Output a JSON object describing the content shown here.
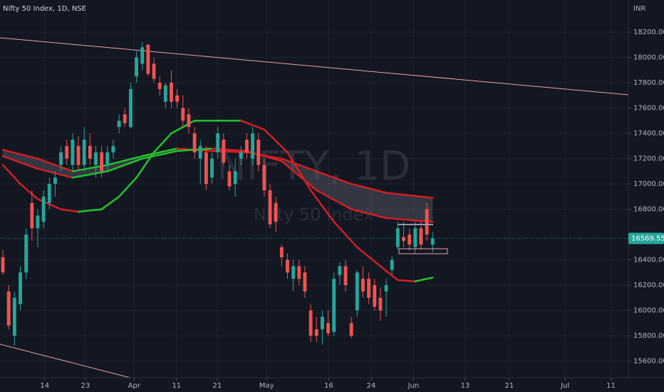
{
  "header": {
    "symbol": "Nifty 50 Index, 1D, NSE",
    "currency": "INR"
  },
  "watermark": {
    "line1": "NIFTY, 1D",
    "line2": "Nifty 50 Index"
  },
  "chart_data": {
    "type": "candlestick",
    "up_color": "#26a69a",
    "down_color": "#ef5350",
    "x": [
      0,
      1,
      2,
      3,
      4,
      5,
      6,
      7,
      8,
      9,
      10,
      11,
      12,
      13,
      14,
      15,
      16,
      17,
      18,
      19,
      20,
      21,
      22,
      23,
      24,
      25,
      26,
      27,
      28,
      29,
      30,
      31,
      32,
      33,
      34,
      35,
      36,
      37,
      38,
      39,
      40,
      41,
      42,
      43,
      44,
      45,
      46,
      47,
      48,
      49,
      50,
      51,
      52,
      53,
      54,
      55,
      56,
      57,
      58,
      59,
      60,
      61,
      62,
      63,
      64,
      65,
      66,
      67,
      68,
      69,
      70,
      71,
      72,
      73,
      74
    ],
    "candles": [
      [
        16420,
        16480,
        16280,
        16300
      ],
      [
        16150,
        16200,
        15850,
        15880
      ],
      [
        15800,
        16150,
        15720,
        16100
      ],
      [
        16050,
        16350,
        16000,
        16300
      ],
      [
        16300,
        16650,
        16250,
        16600
      ],
      [
        16850,
        16950,
        16550,
        16650
      ],
      [
        16650,
        16800,
        16500,
        16750
      ],
      [
        16700,
        16950,
        16650,
        16900
      ],
      [
        16850,
        17050,
        16800,
        17000
      ],
      [
        17000,
        17100,
        16900,
        17050
      ],
      [
        17150,
        17300,
        17100,
        17250
      ],
      [
        17300,
        17350,
        17150,
        17200
      ],
      [
        17150,
        17400,
        17100,
        17350
      ],
      [
        17300,
        17380,
        17100,
        17150
      ],
      [
        17150,
        17450,
        17100,
        17350
      ],
      [
        17300,
        17400,
        17150,
        17200
      ],
      [
        17150,
        17300,
        17050,
        17250
      ],
      [
        17250,
        17300,
        17050,
        17100
      ],
      [
        17150,
        17300,
        17100,
        17250
      ],
      [
        17250,
        17350,
        17200,
        17300
      ],
      [
        17450,
        17550,
        17400,
        17500
      ],
      [
        17550,
        17600,
        17450,
        17480
      ],
      [
        17450,
        17800,
        17440,
        17750
      ],
      [
        17850,
        18050,
        17800,
        18000
      ],
      [
        17950,
        18120,
        17900,
        18080
      ],
      [
        18100,
        18110,
        17850,
        17870
      ],
      [
        17950,
        18000,
        17800,
        17830
      ],
      [
        17800,
        17850,
        17700,
        17750
      ],
      [
        17650,
        17800,
        17600,
        17780
      ],
      [
        17800,
        17900,
        17600,
        17650
      ],
      [
        17700,
        17750,
        17600,
        17650
      ],
      [
        17600,
        17700,
        17450,
        17500
      ],
      [
        17550,
        17600,
        17400,
        17450
      ],
      [
        17400,
        17450,
        17200,
        17250
      ],
      [
        17200,
        17350,
        17000,
        17300
      ],
      [
        17250,
        17300,
        16950,
        17000
      ],
      [
        17050,
        17250,
        17000,
        17200
      ],
      [
        17250,
        17450,
        17200,
        17400
      ],
      [
        17350,
        17400,
        17150,
        17170
      ],
      [
        17100,
        17150,
        16950,
        16980
      ],
      [
        17000,
        17200,
        16900,
        17100
      ],
      [
        17200,
        17300,
        17150,
        17250
      ],
      [
        17350,
        17400,
        17200,
        17250
      ],
      [
        17200,
        17450,
        17150,
        17400
      ],
      [
        17350,
        17400,
        17100,
        17150
      ],
      [
        17150,
        17200,
        16900,
        16950
      ],
      [
        16950,
        17000,
        16650,
        16680
      ],
      [
        16850,
        16900,
        16620,
        16700
      ],
      [
        16500,
        16520,
        16350,
        16420
      ],
      [
        16400,
        16450,
        16250,
        16300
      ],
      [
        16250,
        16400,
        16150,
        16350
      ],
      [
        16350,
        16400,
        16200,
        16250
      ],
      [
        16300,
        16350,
        16100,
        16150
      ],
      [
        16000,
        16050,
        15750,
        15800
      ],
      [
        15850,
        15950,
        15750,
        15800
      ],
      [
        15850,
        16000,
        15730,
        15950
      ],
      [
        15900,
        16000,
        15800,
        15820
      ],
      [
        15830,
        16300,
        15800,
        16250
      ],
      [
        16280,
        16380,
        16200,
        16350
      ],
      [
        16350,
        16400,
        16150,
        16200
      ],
      [
        15900,
        15950,
        15780,
        15800
      ],
      [
        16000,
        16320,
        15950,
        16300
      ],
      [
        16250,
        16350,
        16100,
        16150
      ],
      [
        16250,
        16300,
        16050,
        16100
      ],
      [
        16200,
        16250,
        16000,
        16030
      ],
      [
        16100,
        16180,
        15920,
        16000
      ],
      [
        16150,
        16250,
        15950,
        16200
      ],
      [
        16320,
        16430,
        16280,
        16400
      ],
      [
        16500,
        16700,
        16480,
        16650
      ],
      [
        16580,
        16700,
        16500,
        16550
      ],
      [
        16600,
        16650,
        16470,
        16520
      ],
      [
        16500,
        16700,
        16450,
        16650
      ],
      [
        16650,
        16700,
        16480,
        16520
      ],
      [
        16800,
        16850,
        16550,
        16600
      ],
      [
        16520,
        16620,
        16460,
        16569.55
      ]
    ],
    "lines": [
      {
        "x": [
          0,
          3,
          6,
          10,
          13,
          17,
          20,
          23,
          26,
          29,
          33,
          37,
          41,
          45,
          49,
          53,
          57,
          61,
          65,
          68,
          71,
          74
        ],
        "values": [
          17150,
          17000,
          16880,
          16800,
          16780,
          16800,
          16900,
          17050,
          17250,
          17400,
          17500,
          17500,
          17500,
          17430,
          17250,
          16950,
          16700,
          16500,
          16350,
          16240,
          16230,
          16260
        ],
        "up_color": "#22c52a",
        "down_color": "#d01f24"
      },
      {
        "x": [
          0,
          6,
          12,
          18,
          24,
          30,
          36,
          42,
          48,
          54,
          60,
          66,
          74
        ],
        "values": [
          17270,
          17200,
          17100,
          17150,
          17220,
          17280,
          17260,
          17250,
          17200,
          17100,
          17000,
          16930,
          16890
        ],
        "up_color": "#22c52a",
        "down_color": "#d01f24"
      },
      {
        "x": [
          0,
          6,
          12,
          18,
          24,
          30,
          36,
          42,
          48,
          54,
          60,
          66,
          74
        ],
        "values": [
          17220,
          17120,
          17050,
          17100,
          17200,
          17260,
          17280,
          17260,
          17180,
          16950,
          16800,
          16730,
          16700
        ],
        "up_color": "#22c52a",
        "down_color": "#d01f24"
      }
    ],
    "band_color": "#5d606b",
    "xlim": [
      -0.5,
      107.7
    ],
    "xticks": [
      {
        "value": 7.2,
        "label": "14"
      },
      {
        "value": 14.2,
        "label": "23"
      },
      {
        "value": 22.6,
        "label": "Apr"
      },
      {
        "value": 29.9,
        "label": "11"
      },
      {
        "value": 36.9,
        "label": "21"
      },
      {
        "value": 45.4,
        "label": "May"
      },
      {
        "value": 56.1,
        "label": "16"
      },
      {
        "value": 63.4,
        "label": "24"
      },
      {
        "value": 70.7,
        "label": "Jun"
      },
      {
        "value": 79.6,
        "label": "13"
      },
      {
        "value": 87.2,
        "label": "21"
      },
      {
        "value": 96.8,
        "label": "Jul"
      },
      {
        "value": 104.7,
        "label": "11"
      }
    ],
    "ylim": [
      15468,
      18454
    ],
    "yticks": [
      {
        "value": 15600,
        "label": "15600.00"
      },
      {
        "value": 15800,
        "label": "15800.00"
      },
      {
        "value": 16000,
        "label": "16000.00"
      },
      {
        "value": 16200,
        "label": "16200.00"
      },
      {
        "value": 16400,
        "label": "16400.00"
      },
      {
        "value": 16800,
        "label": "16800.00"
      },
      {
        "value": 17000,
        "label": "17000.00"
      },
      {
        "value": 17200,
        "label": "17200.00"
      },
      {
        "value": 17400,
        "label": "17400.00"
      },
      {
        "value": 17600,
        "label": "17600.00"
      },
      {
        "value": 17800,
        "label": "17800.00"
      },
      {
        "value": 18000,
        "label": "18000.00"
      },
      {
        "value": 18200,
        "label": "18200.00"
      }
    ],
    "grid": true
  }
}
